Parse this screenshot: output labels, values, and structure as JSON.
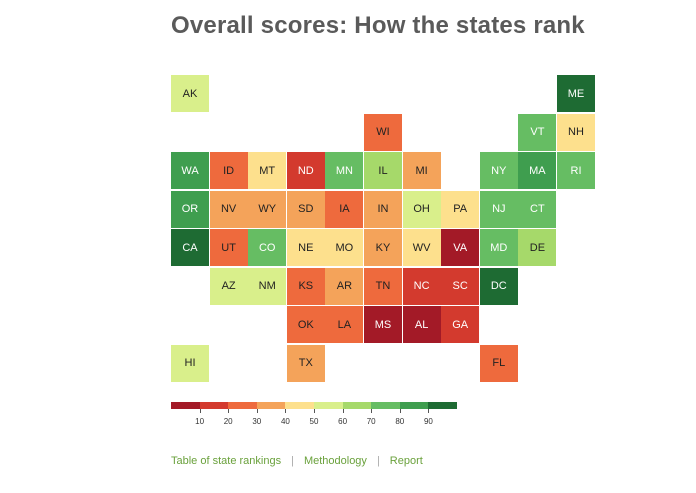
{
  "title": "Overall scores: How the states rank",
  "map_tiles": [
    {
      "abbr": "AK",
      "level": 5
    },
    {
      "abbr": "ME",
      "level": 9
    },
    {
      "abbr": "WI",
      "level": 2
    },
    {
      "abbr": "VT",
      "level": 7
    },
    {
      "abbr": "NH",
      "level": 4
    },
    {
      "abbr": "WA",
      "level": 8
    },
    {
      "abbr": "ID",
      "level": 2
    },
    {
      "abbr": "MT",
      "level": 4
    },
    {
      "abbr": "ND",
      "level": 1
    },
    {
      "abbr": "MN",
      "level": 7
    },
    {
      "abbr": "IL",
      "level": 6
    },
    {
      "abbr": "MI",
      "level": 3
    },
    {
      "abbr": "NY",
      "level": 7
    },
    {
      "abbr": "MA",
      "level": 8
    },
    {
      "abbr": "RI",
      "level": 7
    },
    {
      "abbr": "OR",
      "level": 8
    },
    {
      "abbr": "NV",
      "level": 3
    },
    {
      "abbr": "WY",
      "level": 3
    },
    {
      "abbr": "SD",
      "level": 3
    },
    {
      "abbr": "IA",
      "level": 2
    },
    {
      "abbr": "IN",
      "level": 3
    },
    {
      "abbr": "OH",
      "level": 5
    },
    {
      "abbr": "PA",
      "level": 4
    },
    {
      "abbr": "NJ",
      "level": 7
    },
    {
      "abbr": "CT",
      "level": 7
    },
    {
      "abbr": "CA",
      "level": 9
    },
    {
      "abbr": "UT",
      "level": 2
    },
    {
      "abbr": "CO",
      "level": 7
    },
    {
      "abbr": "NE",
      "level": 4
    },
    {
      "abbr": "MO",
      "level": 4
    },
    {
      "abbr": "KY",
      "level": 3
    },
    {
      "abbr": "WV",
      "level": 4
    },
    {
      "abbr": "VA",
      "level": 0
    },
    {
      "abbr": "MD",
      "level": 7
    },
    {
      "abbr": "DE",
      "level": 6
    },
    {
      "abbr": "AZ",
      "level": 5
    },
    {
      "abbr": "NM",
      "level": 5
    },
    {
      "abbr": "KS",
      "level": 2
    },
    {
      "abbr": "AR",
      "level": 3
    },
    {
      "abbr": "TN",
      "level": 2
    },
    {
      "abbr": "NC",
      "level": 1
    },
    {
      "abbr": "SC",
      "level": 1
    },
    {
      "abbr": "DC",
      "level": 9
    },
    {
      "abbr": "OK",
      "level": 2
    },
    {
      "abbr": "LA",
      "level": 2
    },
    {
      "abbr": "MS",
      "level": 0
    },
    {
      "abbr": "AL",
      "level": 0
    },
    {
      "abbr": "GA",
      "level": 1
    },
    {
      "abbr": "HI",
      "level": 5
    },
    {
      "abbr": "TX",
      "level": 3
    },
    {
      "abbr": "FL",
      "level": 2
    }
  ],
  "legend": {
    "colors": [
      "#a31a27",
      "#d33a2e",
      "#ee6a3d",
      "#f4a35a",
      "#fde08d",
      "#d9ef8b",
      "#a6d96a",
      "#66bd63",
      "#3f9e4f",
      "#1e6b33"
    ],
    "labels": [
      "10",
      "20",
      "30",
      "40",
      "50",
      "60",
      "70",
      "80",
      "90"
    ]
  },
  "footer": {
    "links": [
      "Table of state rankings",
      "Methodology",
      "Report"
    ],
    "separator": "|"
  }
}
